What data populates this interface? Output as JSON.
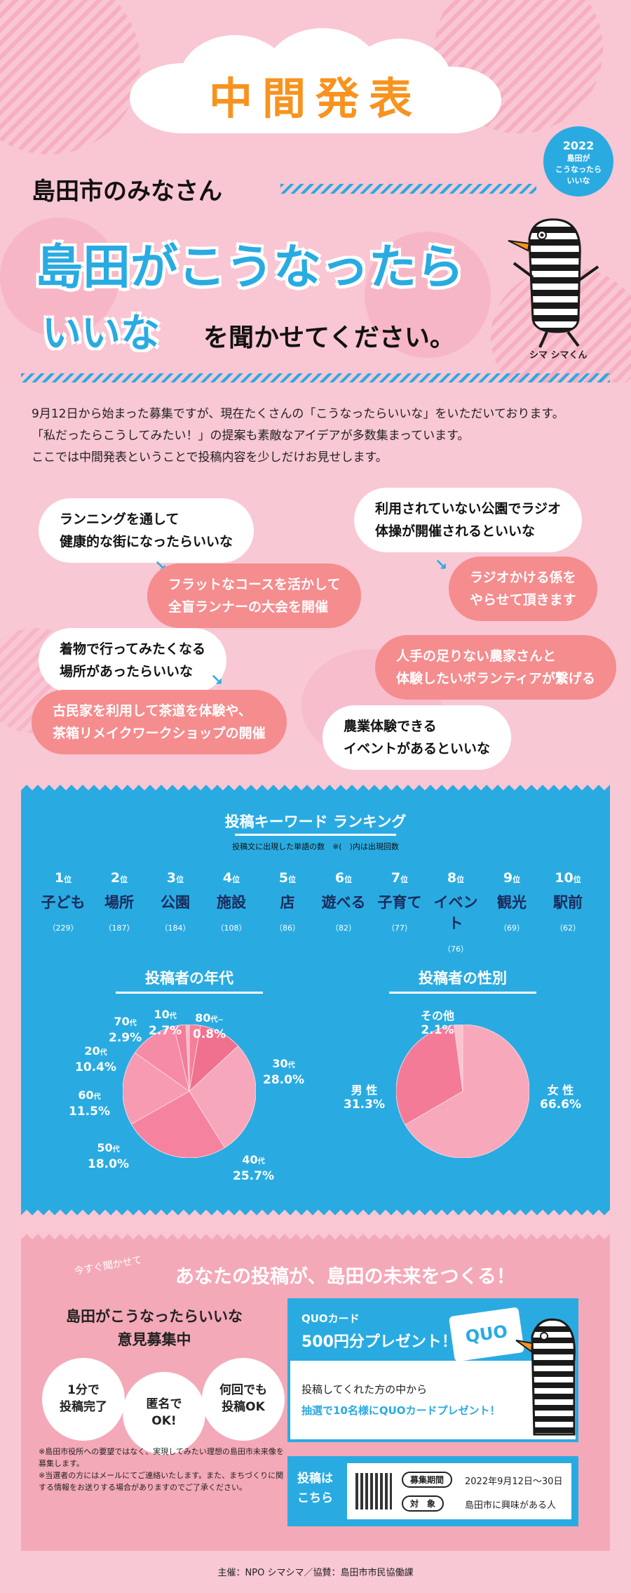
{
  "hero": {
    "title": "中間発表",
    "greeting": "島田市のみなさん",
    "badge_year": "2022",
    "badge_text_1": "島田が",
    "badge_text_2": "こうなったら",
    "badge_text_3": "いいな",
    "main_line1": "島田がこうなったら",
    "main_line2": "いいな",
    "main_line3": "を聞かせてください。",
    "mascot_name": "シマ シマくん"
  },
  "intro": {
    "line1": "9月12日から始まった募集ですが、現在たくさんの「こうなったらいいな」をいただいております。",
    "line2": "「私だったらこうしてみたい！」の提案も素敵なアイデアが多数集まっています。",
    "line3": "ここでは中間発表ということで投稿内容を少しだけお見せします。"
  },
  "ideas": {
    "a_wish_1": "ランニングを通して",
    "a_wish_2": "健康的な街になったらいいな",
    "a_plan_1": "フラットなコースを活かして",
    "a_plan_2": "全盲ランナーの大会を開催",
    "b_wish_1": "利用されていない公園でラジオ",
    "b_wish_2": "体操が開催されるといいな",
    "b_plan_1": "ラジオかける係を",
    "b_plan_2": "やらせて頂きます",
    "c_wish_1": "着物で行ってみたくなる",
    "c_wish_2": "場所があったらいいな",
    "c_plan_1": "古民家を利用して茶道を体験や、",
    "c_plan_2": "茶箱リメイクワークショップの開催",
    "d_plan_1": "人手の足りない農家さんと",
    "d_plan_2": "体験したいボランティアが繋げる",
    "d_wish_1": "農業体験できる",
    "d_wish_2": "イベントがあるといいな"
  },
  "keywords": {
    "title": "投稿キーワード ランキング",
    "subtitle": "投稿文に出現した単語の数　※(　)内は出現回数",
    "rank_suffix": "位",
    "items": [
      {
        "rank": "1",
        "word": "子ども",
        "count": "（229）"
      },
      {
        "rank": "2",
        "word": "場所",
        "count": "（187）"
      },
      {
        "rank": "3",
        "word": "公園",
        "count": "（184）"
      },
      {
        "rank": "4",
        "word": "施設",
        "count": "（108）"
      },
      {
        "rank": "5",
        "word": "店",
        "count": "（86）"
      },
      {
        "rank": "6",
        "word": "遊べる",
        "count": "（82）"
      },
      {
        "rank": "7",
        "word": "子育て",
        "count": "（77）"
      },
      {
        "rank": "8",
        "word": "イベント",
        "count": "（76）"
      },
      {
        "rank": "9",
        "word": "観光",
        "count": "（69）"
      },
      {
        "rank": "10",
        "word": "駅前",
        "count": "（62）"
      }
    ]
  },
  "chart_data": [
    {
      "type": "pie",
      "title": "投稿者の年代",
      "categories": [
        "10代",
        "20代",
        "30代",
        "40代",
        "50代",
        "60代",
        "70代",
        "80代~"
      ],
      "values": [
        2.7,
        10.4,
        28.0,
        25.7,
        18.0,
        11.5,
        2.9,
        0.8
      ],
      "colors": [
        "#f47f9b",
        "#f0708f",
        "#f7a7bb",
        "#f583a0",
        "#f79bb2",
        "#f58ba6",
        "#f27c99",
        "#f9b7c7"
      ]
    },
    {
      "type": "pie",
      "title": "投稿者の性別",
      "categories": [
        "女性",
        "男性",
        "その他"
      ],
      "values": [
        66.6,
        31.3,
        2.1
      ],
      "colors": [
        "#f7a8bb",
        "#f47b98",
        "#f9c4d0"
      ]
    }
  ],
  "age_labels": {
    "d10": {
      "n": "10",
      "s": "代",
      "v": "2.7%"
    },
    "d20": {
      "n": "20",
      "s": "代",
      "v": "10.4%"
    },
    "d30": {
      "n": "30",
      "s": "代",
      "v": "28.0%"
    },
    "d40": {
      "n": "40",
      "s": "代",
      "v": "25.7%"
    },
    "d50": {
      "n": "50",
      "s": "代",
      "v": "18.0%"
    },
    "d60": {
      "n": "60",
      "s": "代",
      "v": "11.5%"
    },
    "d70": {
      "n": "70",
      "s": "代",
      "v": "2.9%"
    },
    "d80": {
      "n": "80",
      "s": "代~",
      "v": "0.8%"
    }
  },
  "gender_labels": {
    "female": {
      "n": "女 性",
      "v": "66.6%"
    },
    "male": {
      "n": "男 性",
      "v": "31.3%"
    },
    "other": {
      "n": "その他",
      "v": "2.1%"
    }
  },
  "recruit": {
    "catch_small": "今すぐ聞かせて",
    "catch": "あなたの投稿が、島田の未来をつくる！",
    "title_1": "島田がこうなったらいいな",
    "title_2": "意見募集中",
    "circle1_1": "1分で",
    "circle1_2": "投稿完了",
    "circle2_1": "匿名で",
    "circle2_2": "OK!",
    "circle3_1": "何回でも",
    "circle3_2": "投稿OK",
    "note1": "※島田市役所への要望ではなく、実現してみたい理想の島田市未来像を募集します。",
    "note2": "※当選者の方にはメールにてご連絡いたします。また、まちづくりに関する情報をお送りする場合がありますのでご了承ください。",
    "quo_line1": "QUOカード",
    "quo_line2": "500円分プレゼント！",
    "quo_card": "QUO",
    "quo_text1": "投稿してくれた方の中から",
    "quo_text2": "抽選で10名様にQUOカードプレゼント！",
    "post_label_1": "投稿は",
    "post_label_2": "こちら",
    "period_label": "募集期間",
    "period_value": "2022年9月12日～30日",
    "target_label": "対　象",
    "target_value": "島田市に興味がある人"
  },
  "footer": {
    "text": "主催：NPO シマシマ／協賛：島田市市民協働課"
  },
  "colors": {
    "pink_bg": "#f9c6d3",
    "blue": "#29abe2",
    "orange": "#f7931e",
    "salmon": "#f58c8e"
  }
}
